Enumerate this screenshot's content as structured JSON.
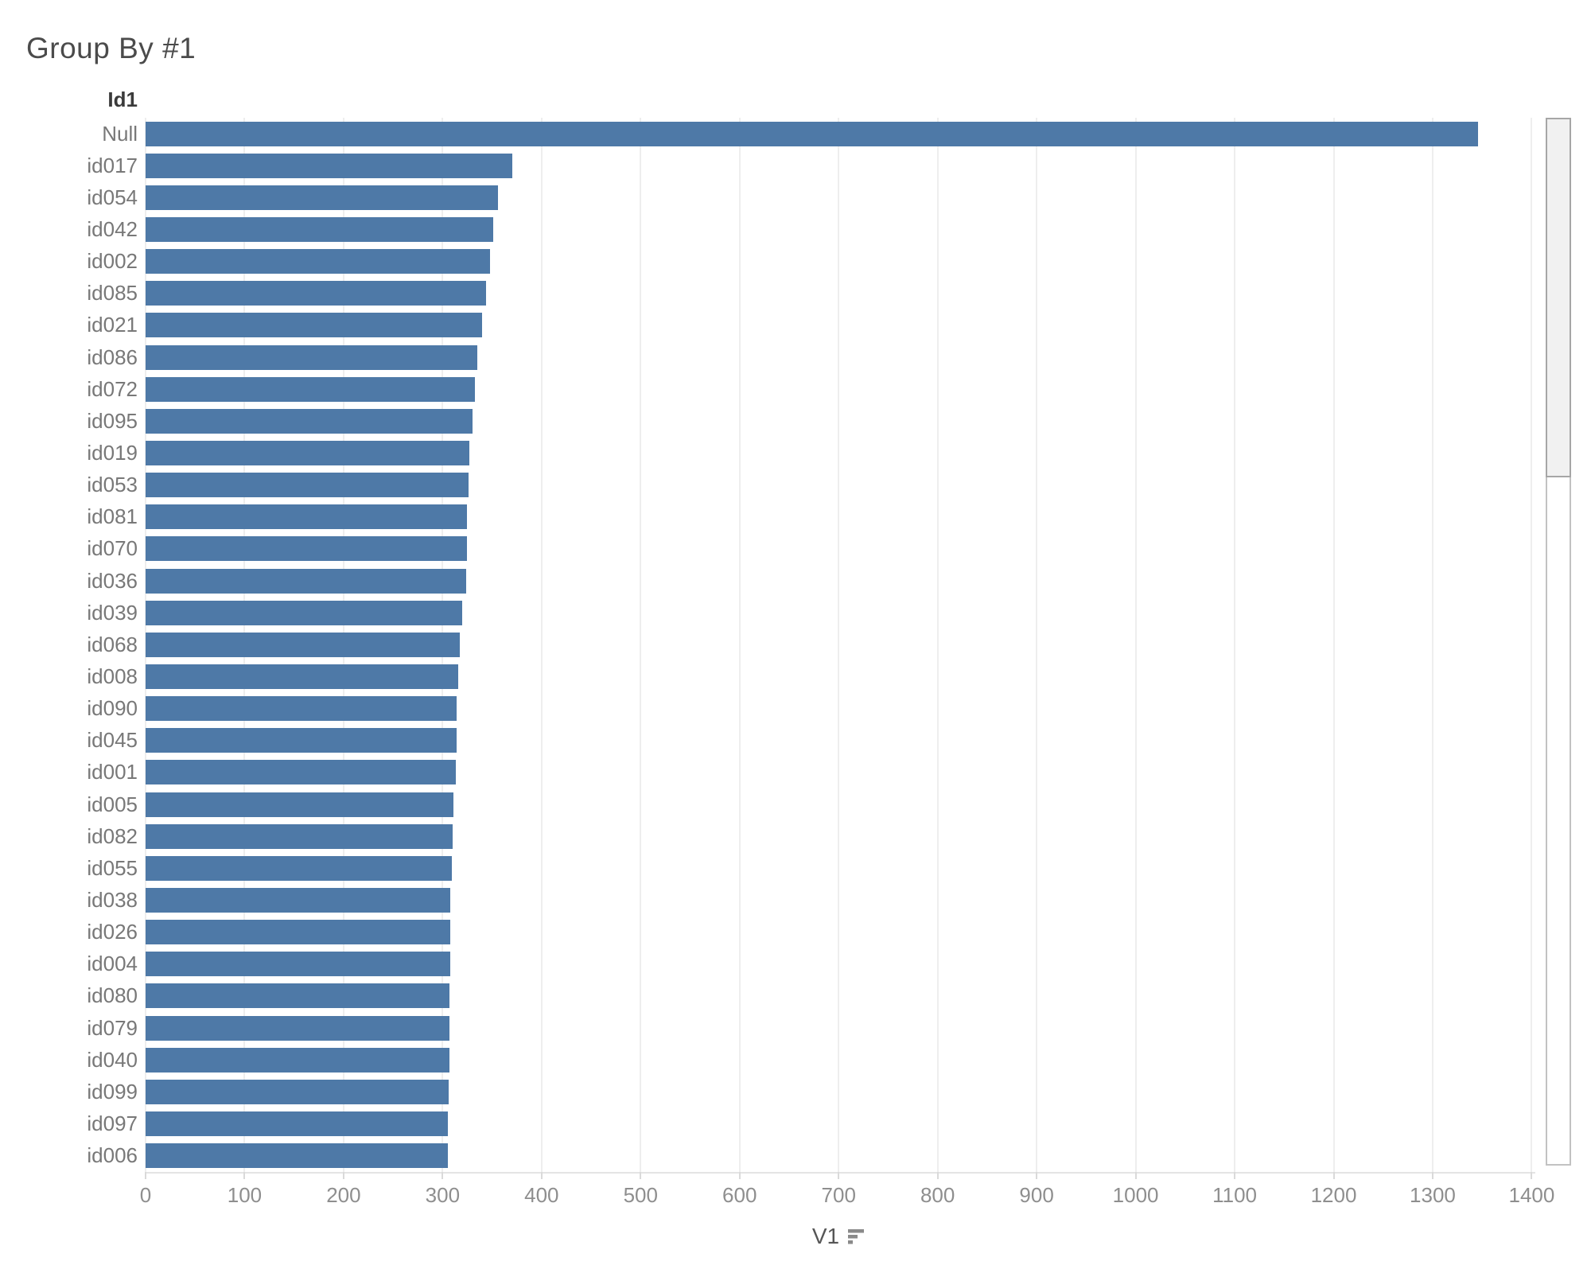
{
  "title": "Group By #1",
  "y_axis": {
    "header": "Id1"
  },
  "x_axis": {
    "title": "V1",
    "sort_icon": "sort-descending-icon",
    "ticks": [
      0,
      100,
      200,
      300,
      400,
      500,
      600,
      700,
      800,
      900,
      1000,
      1100,
      1200,
      1300,
      1400
    ]
  },
  "colors": {
    "bar": "#4e79a7",
    "gridline": "#eeeeee",
    "axis_line": "#e4e4e4",
    "tick_label": "#8e8e8e",
    "category_label": "#787878",
    "title_text": "#4b4b4b",
    "sort_icon": "#8a8a8a"
  },
  "chart_data": {
    "type": "bar",
    "orientation": "horizontal",
    "title": "Group By #1",
    "xlabel": "V1",
    "ylabel": "Id1",
    "xlim": [
      0,
      1400
    ],
    "grid": true,
    "sort": "descending by V1",
    "categories": [
      "Null",
      "id017",
      "id054",
      "id042",
      "id002",
      "id085",
      "id021",
      "id086",
      "id072",
      "id095",
      "id019",
      "id053",
      "id081",
      "id070",
      "id036",
      "id039",
      "id068",
      "id008",
      "id090",
      "id045",
      "id001",
      "id005",
      "id082",
      "id055",
      "id038",
      "id026",
      "id004",
      "id080",
      "id079",
      "id040",
      "id099",
      "id097",
      "id006"
    ],
    "values": [
      1346,
      370,
      356,
      351,
      348,
      344,
      340,
      335,
      333,
      330,
      327,
      326,
      325,
      325,
      324,
      320,
      317,
      316,
      314,
      314,
      313,
      311,
      310,
      309,
      308,
      308,
      308,
      307,
      307,
      307,
      306,
      305,
      305
    ]
  }
}
